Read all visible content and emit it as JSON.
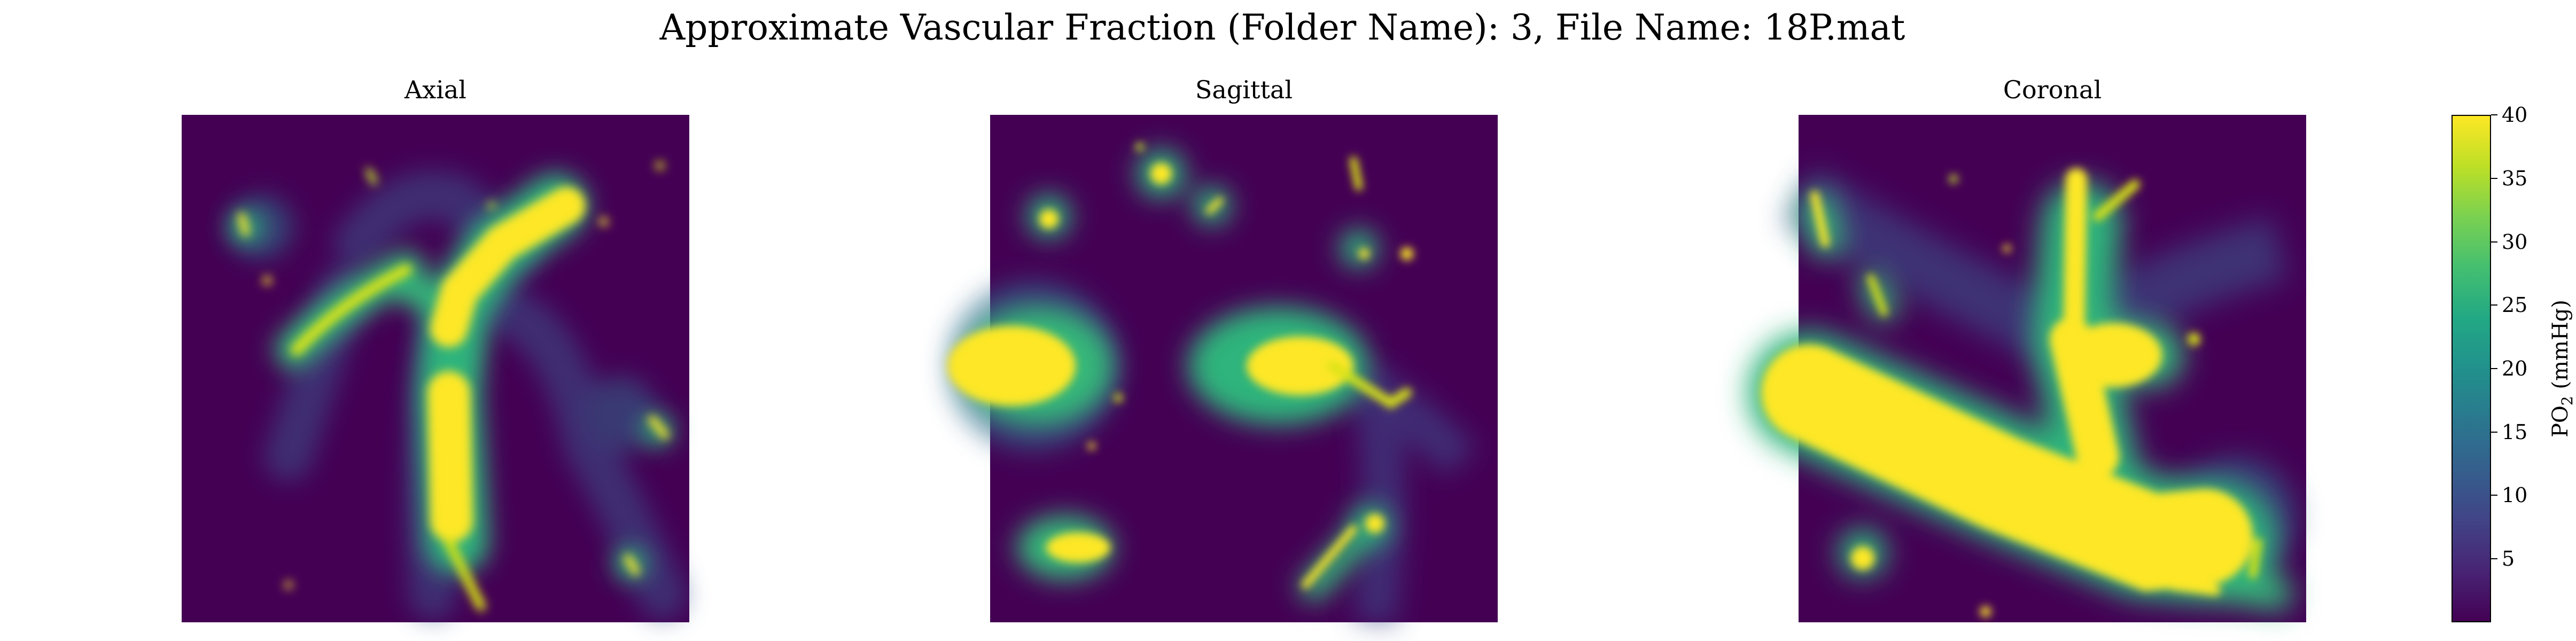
{
  "figure": {
    "title": "Approximate Vascular Fraction (Folder Name): 3, File Name: 18P.mat"
  },
  "panels": [
    {
      "title": "Axial"
    },
    {
      "title": "Sagittal"
    },
    {
      "title": "Coronal"
    }
  ],
  "colorbar": {
    "label_main": "PO",
    "label_sub": "2",
    "label_unit": "(mmHg)",
    "colormap": "viridis",
    "range": [
      0,
      40
    ],
    "ticks": [
      "5",
      "10",
      "15",
      "20",
      "25",
      "30",
      "35",
      "40"
    ]
  },
  "colors": {
    "low": "#440154",
    "mid": "#21918c",
    "high": "#fde725"
  }
}
